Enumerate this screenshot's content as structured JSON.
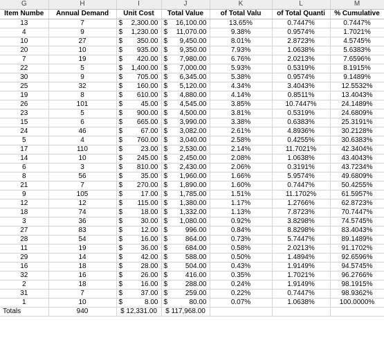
{
  "columns": [
    "G",
    "H",
    "I",
    "J",
    "K",
    "L",
    "M"
  ],
  "headers": [
    "Item Numbe",
    "Annual Demand",
    "Unit Cost",
    "Total Value",
    "of Total Valu",
    "of Total Quanti",
    "% Cumulative"
  ],
  "currency": "$",
  "rows": [
    {
      "item": "13",
      "demand": "7",
      "cost": "2,300.00",
      "value": "16,100.00",
      "pv": "13.65%",
      "pq": "0.7447%",
      "cum": "0.7447%"
    },
    {
      "item": "4",
      "demand": "9",
      "cost": "1,230.00",
      "value": "11,070.00",
      "pv": "9.38%",
      "pq": "0.9574%",
      "cum": "1.7021%"
    },
    {
      "item": "10",
      "demand": "27",
      "cost": "350.00",
      "value": "9,450.00",
      "pv": "8.01%",
      "pq": "2.8723%",
      "cum": "4.5745%"
    },
    {
      "item": "20",
      "demand": "10",
      "cost": "935.00",
      "value": "9,350.00",
      "pv": "7.93%",
      "pq": "1.0638%",
      "cum": "5.6383%"
    },
    {
      "item": "7",
      "demand": "19",
      "cost": "420.00",
      "value": "7,980.00",
      "pv": "6.76%",
      "pq": "2.0213%",
      "cum": "7.6596%"
    },
    {
      "item": "22",
      "demand": "5",
      "cost": "1,400.00",
      "value": "7,000.00",
      "pv": "5.93%",
      "pq": "0.5319%",
      "cum": "8.1915%"
    },
    {
      "item": "30",
      "demand": "9",
      "cost": "705.00",
      "value": "6,345.00",
      "pv": "5.38%",
      "pq": "0.9574%",
      "cum": "9.1489%"
    },
    {
      "item": "25",
      "demand": "32",
      "cost": "160.00",
      "value": "5,120.00",
      "pv": "4.34%",
      "pq": "3.4043%",
      "cum": "12.5532%"
    },
    {
      "item": "19",
      "demand": "8",
      "cost": "610.00",
      "value": "4,880.00",
      "pv": "4.14%",
      "pq": "0.8511%",
      "cum": "13.4043%"
    },
    {
      "item": "26",
      "demand": "101",
      "cost": "45.00",
      "value": "4,545.00",
      "pv": "3.85%",
      "pq": "10.7447%",
      "cum": "24.1489%"
    },
    {
      "item": "23",
      "demand": "5",
      "cost": "900.00",
      "value": "4,500.00",
      "pv": "3.81%",
      "pq": "0.5319%",
      "cum": "24.6809%"
    },
    {
      "item": "15",
      "demand": "6",
      "cost": "665.00",
      "value": "3,990.00",
      "pv": "3.38%",
      "pq": "0.6383%",
      "cum": "25.3191%"
    },
    {
      "item": "24",
      "demand": "46",
      "cost": "67.00",
      "value": "3,082.00",
      "pv": "2.61%",
      "pq": "4.8936%",
      "cum": "30.2128%"
    },
    {
      "item": "5",
      "demand": "4",
      "cost": "760.00",
      "value": "3,040.00",
      "pv": "2.58%",
      "pq": "0.4255%",
      "cum": "30.6383%"
    },
    {
      "item": "17",
      "demand": "110",
      "cost": "23.00",
      "value": "2,530.00",
      "pv": "2.14%",
      "pq": "11.7021%",
      "cum": "42.3404%"
    },
    {
      "item": "14",
      "demand": "10",
      "cost": "245.00",
      "value": "2,450.00",
      "pv": "2.08%",
      "pq": "1.0638%",
      "cum": "43.4043%"
    },
    {
      "item": "6",
      "demand": "3",
      "cost": "810.00",
      "value": "2,430.00",
      "pv": "2.06%",
      "pq": "0.3191%",
      "cum": "43.7234%"
    },
    {
      "item": "8",
      "demand": "56",
      "cost": "35.00",
      "value": "1,960.00",
      "pv": "1.66%",
      "pq": "5.9574%",
      "cum": "49.6809%"
    },
    {
      "item": "21",
      "demand": "7",
      "cost": "270.00",
      "value": "1,890.00",
      "pv": "1.60%",
      "pq": "0.7447%",
      "cum": "50.4255%"
    },
    {
      "item": "9",
      "demand": "105",
      "cost": "17.00",
      "value": "1,785.00",
      "pv": "1.51%",
      "pq": "11.1702%",
      "cum": "61.5957%"
    },
    {
      "item": "12",
      "demand": "12",
      "cost": "115.00",
      "value": "1,380.00",
      "pv": "1.17%",
      "pq": "1.2766%",
      "cum": "62.8723%"
    },
    {
      "item": "18",
      "demand": "74",
      "cost": "18.00",
      "value": "1,332.00",
      "pv": "1.13%",
      "pq": "7.8723%",
      "cum": "70.7447%"
    },
    {
      "item": "3",
      "demand": "36",
      "cost": "30.00",
      "value": "1,080.00",
      "pv": "0.92%",
      "pq": "3.8298%",
      "cum": "74.5745%"
    },
    {
      "item": "27",
      "demand": "83",
      "cost": "12.00",
      "value": "996.00",
      "pv": "0.84%",
      "pq": "8.8298%",
      "cum": "83.4043%"
    },
    {
      "item": "28",
      "demand": "54",
      "cost": "16.00",
      "value": "864.00",
      "pv": "0.73%",
      "pq": "5.7447%",
      "cum": "89.1489%"
    },
    {
      "item": "11",
      "demand": "19",
      "cost": "36.00",
      "value": "684.00",
      "pv": "0.58%",
      "pq": "2.0213%",
      "cum": "91.1702%"
    },
    {
      "item": "29",
      "demand": "14",
      "cost": "42.00",
      "value": "588.00",
      "pv": "0.50%",
      "pq": "1.4894%",
      "cum": "92.6596%"
    },
    {
      "item": "16",
      "demand": "18",
      "cost": "28.00",
      "value": "504.00",
      "pv": "0.43%",
      "pq": "1.9149%",
      "cum": "94.5745%"
    },
    {
      "item": "32",
      "demand": "16",
      "cost": "26.00",
      "value": "416.00",
      "pv": "0.35%",
      "pq": "1.7021%",
      "cum": "96.2766%"
    },
    {
      "item": "2",
      "demand": "18",
      "cost": "16.00",
      "value": "288.00",
      "pv": "0.24%",
      "pq": "1.9149%",
      "cum": "98.1915%"
    },
    {
      "item": "31",
      "demand": "7",
      "cost": "37.00",
      "value": "259.00",
      "pv": "0.22%",
      "pq": "0.7447%",
      "cum": "98.9362%"
    },
    {
      "item": "1",
      "demand": "10",
      "cost": "8.00",
      "value": "80.00",
      "pv": "0.07%",
      "pq": "1.0638%",
      "cum": "100.0000%"
    }
  ],
  "totals": {
    "label": "Totals",
    "demand": "940",
    "cost": "$ 12,331.00",
    "value": "$ 117,968.00"
  }
}
